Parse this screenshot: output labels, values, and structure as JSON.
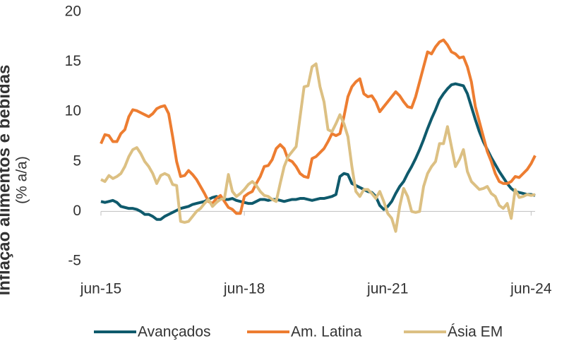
{
  "chart_data": {
    "type": "line",
    "title": "Inflação alimentos e bebidas",
    "y_label": "(% a/a)",
    "categories": [
      "jun-15",
      null,
      null,
      null,
      null,
      null,
      null,
      null,
      null,
      null,
      null,
      null,
      null,
      null,
      null,
      null,
      null,
      null,
      null,
      null,
      null,
      null,
      null,
      null,
      null,
      null,
      null,
      null,
      null,
      null,
      null,
      null,
      null,
      null,
      null,
      null,
      "jun-18",
      null,
      null,
      null,
      null,
      null,
      null,
      null,
      null,
      null,
      null,
      null,
      null,
      null,
      null,
      null,
      null,
      null,
      null,
      null,
      null,
      null,
      null,
      null,
      null,
      null,
      null,
      null,
      null,
      null,
      null,
      null,
      null,
      null,
      null,
      null,
      "jun-21",
      null,
      null,
      null,
      null,
      null,
      null,
      null,
      null,
      null,
      null,
      null,
      null,
      null,
      null,
      null,
      null,
      null,
      null,
      null,
      null,
      null,
      null,
      null,
      null,
      null,
      null,
      null,
      null,
      null,
      null,
      null,
      null,
      null,
      null,
      null,
      "jun-24",
      null
    ],
    "series": [
      {
        "name": "Avançados",
        "color": "#0f5a6c",
        "values": [
          1.0,
          0.9,
          1.0,
          1.1,
          0.9,
          0.5,
          0.4,
          0.3,
          0.3,
          0.2,
          0,
          -0.3,
          -0.3,
          -0.5,
          -0.8,
          -0.8,
          -0.5,
          -0.3,
          -0.1,
          0.1,
          0.3,
          0.4,
          0.5,
          0.7,
          0.8,
          0.9,
          1.0,
          1.2,
          1.4,
          1.5,
          1.3,
          1.2,
          1.2,
          1.3,
          1.1,
          1.0,
          0.9,
          0.8,
          0.8,
          1.0,
          1.2,
          1.2,
          1.1,
          1.2,
          1.2,
          1.1,
          1.0,
          1.1,
          1.2,
          1.2,
          1.3,
          1.3,
          1.2,
          1.1,
          1.2,
          1.3,
          1.3,
          1.4,
          1.5,
          1.7,
          3.5,
          3.8,
          3.7,
          2.8,
          2.6,
          2.4,
          2.2,
          2.0,
          1.9,
          1.5,
          0.6,
          0.2,
          0.5,
          1.0,
          1.8,
          2.5,
          3.0,
          3.8,
          4.5,
          5.3,
          6.2,
          7.2,
          8.3,
          9.3,
          10.2,
          11.2,
          11.8,
          12.3,
          12.7,
          12.8,
          12.7,
          12.6,
          11.8,
          10.5,
          9.2,
          8.0,
          7.0,
          6.2,
          5.4,
          4.7,
          4.0,
          3.4,
          2.8,
          2.3,
          2.0,
          1.9,
          1.8,
          1.7,
          1.7,
          1.6
        ]
      },
      {
        "name": "Am. Latina",
        "color": "#ed7d31",
        "values": [
          6.8,
          7.7,
          7.6,
          7.0,
          7.0,
          7.8,
          8.2,
          9.5,
          10.2,
          10.1,
          9.9,
          9.7,
          9.5,
          9.8,
          10.3,
          10.5,
          10.6,
          9.8,
          7.5,
          5.0,
          3.5,
          3.6,
          4.1,
          3.7,
          3.2,
          2.5,
          1.8,
          1.0,
          0.8,
          1.3,
          1.6,
          1.0,
          0.4,
          0.2,
          -0.2,
          -0.2,
          1.5,
          1.8,
          2.0,
          2.8,
          3.5,
          4.5,
          4.6,
          5.2,
          6.3,
          6.7,
          6.3,
          5.2,
          5.0,
          4.5,
          3.8,
          3.5,
          3.4,
          5.3,
          5.5,
          5.9,
          6.3,
          7.0,
          7.8,
          7.6,
          7.8,
          9.5,
          11.5,
          12.5,
          13.0,
          13.3,
          11.8,
          11.5,
          11.6,
          11.0,
          10.0,
          10.5,
          11.0,
          11.5,
          12.0,
          11.6,
          11.0,
          10.5,
          10.4,
          11.5,
          13.0,
          14.5,
          16.0,
          15.8,
          16.5,
          17.0,
          17.2,
          16.7,
          16.0,
          15.8,
          15.4,
          15.5,
          14.5,
          13.0,
          10.5,
          9.0,
          7.5,
          6.0,
          5.0,
          3.8,
          3.0,
          2.8,
          2.8,
          3.0,
          3.5,
          3.4,
          3.8,
          4.2,
          4.8,
          5.6
        ]
      },
      {
        "name": "Ásia EM",
        "color": "#dcc083",
        "values": [
          3.2,
          3.0,
          3.6,
          3.3,
          3.5,
          3.8,
          4.5,
          5.5,
          6.2,
          6.4,
          5.8,
          5.0,
          4.5,
          3.8,
          2.8,
          3.6,
          3.8,
          3.6,
          2.7,
          2.6,
          -1.0,
          -1.1,
          -1.0,
          -0.5,
          0.0,
          0.3,
          0.8,
          1.2,
          0.5,
          0.9,
          1.2,
          1.3,
          3.7,
          2.0,
          1.5,
          1.8,
          2.2,
          2.7,
          3.0,
          2.6,
          2.0,
          1.6,
          1.5,
          1.2,
          1.0,
          2.8,
          4.5,
          5.5,
          6.0,
          6.5,
          9.5,
          12.5,
          12.6,
          14.5,
          14.8,
          12.5,
          11.0,
          8.2,
          8.0,
          8.8,
          9.7,
          8.8,
          7.5,
          4.5,
          2.0,
          1.5,
          2.2,
          2.2,
          1.8,
          1.3,
          2.0,
          1.0,
          -0.2,
          -0.7,
          -2.0,
          0.5,
          2.3,
          1.5,
          0.0,
          -0.1,
          0.0,
          2.5,
          3.8,
          4.5,
          5.0,
          6.8,
          6.8,
          8.5,
          6.5,
          4.5,
          5.2,
          6.2,
          4.0,
          3.0,
          2.6,
          2.2,
          2.3,
          2.5,
          1.8,
          1.5,
          0.6,
          0.3,
          0.8,
          -0.7,
          2.2,
          1.4,
          1.5,
          1.7,
          1.6,
          1.7
        ]
      }
    ],
    "ylim": [
      -5,
      20
    ],
    "yticks": [
      -5,
      0,
      5,
      10,
      15,
      20
    ],
    "grid": false,
    "legend": "bottom"
  }
}
